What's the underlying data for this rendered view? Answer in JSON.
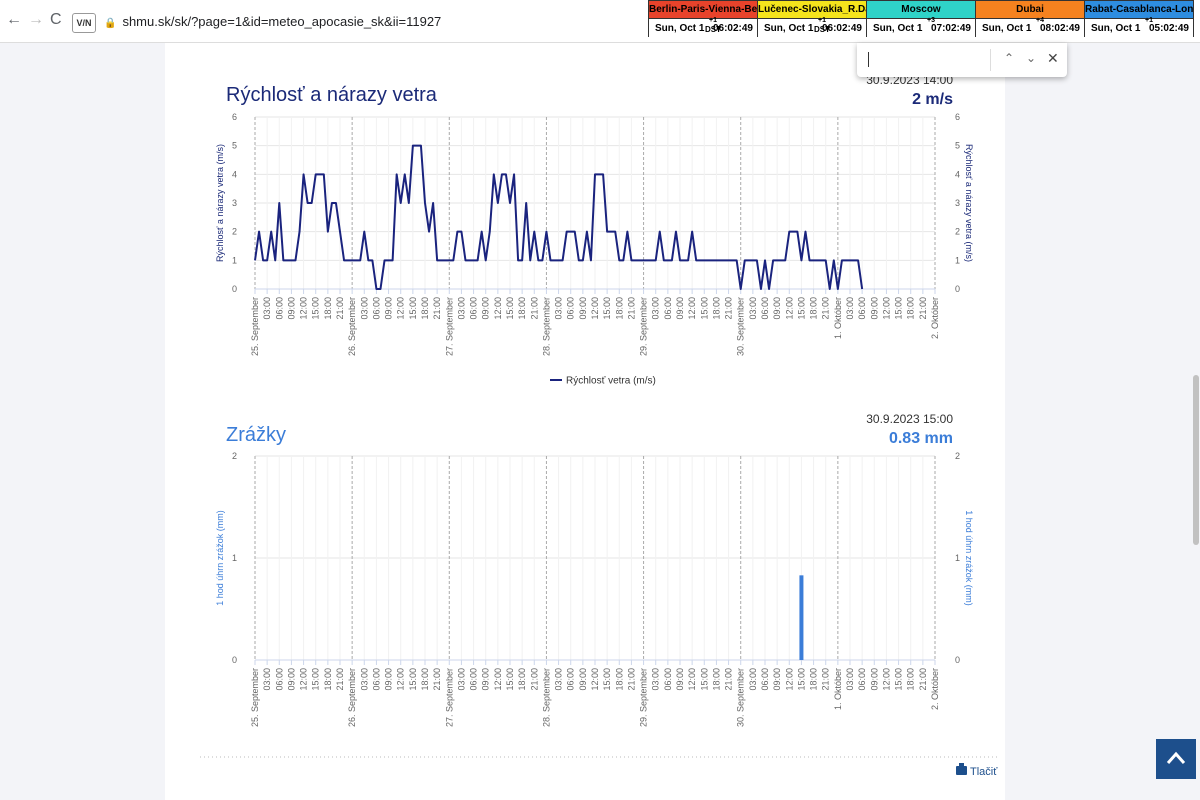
{
  "browser": {
    "url": "shmu.sk/sk/?page=1&id=meteo_apocasie_sk&ii=11927"
  },
  "clocks": [
    {
      "name": "Berlin-Paris-Vienna-Belgrade",
      "color": "#e8432b",
      "date": "Sun, Oct 1",
      "offset": "+1",
      "dst": "DST",
      "time": "06:02:49"
    },
    {
      "name": "Lučenec-Slovakia_R.Dávid",
      "color": "#f5e41c",
      "date": "Sun, Oct 1",
      "offset": "+1",
      "dst": "DST",
      "time": "06:02:49"
    },
    {
      "name": "Moscow",
      "color": "#2fd3c8",
      "date": "Sun, Oct 1",
      "offset": "+3",
      "time": "07:02:49"
    },
    {
      "name": "Dubai",
      "color": "#f5821f",
      "date": "Sun, Oct 1",
      "offset": "+4",
      "time": "08:02:49"
    },
    {
      "name": "Rabat-Casablanca-London",
      "color": "#2e8de0",
      "date": "Sun, Oct 1",
      "offset": "+1",
      "time": "05:02:49"
    }
  ],
  "print_label": "Tlačiť",
  "chart_data": [
    {
      "type": "line",
      "title": "Rýchlosť a nárazy vetra",
      "ylabel": "Rýchlosť a nárazy vetra (m/s)",
      "current": {
        "time": "30.9.2023 14:00",
        "reading": "2 m/s"
      },
      "xlim": [
        0,
        168
      ],
      "ylim": [
        0,
        6
      ],
      "yticks": [
        0,
        1,
        2,
        3,
        4,
        5,
        6
      ],
      "grid": true,
      "legend": "bottom",
      "xticks": [
        {
          "value": 0,
          "label": "25. September"
        },
        {
          "value": 3,
          "label": "03:00"
        },
        {
          "value": 6,
          "label": "06:00"
        },
        {
          "value": 9,
          "label": "09:00"
        },
        {
          "value": 12,
          "label": "12:00"
        },
        {
          "value": 15,
          "label": "15:00"
        },
        {
          "value": 18,
          "label": "18:00"
        },
        {
          "value": 21,
          "label": "21:00"
        },
        {
          "value": 24,
          "label": "26. September"
        },
        {
          "value": 27,
          "label": "03:00"
        },
        {
          "value": 30,
          "label": "06:00"
        },
        {
          "value": 33,
          "label": "09:00"
        },
        {
          "value": 36,
          "label": "12:00"
        },
        {
          "value": 39,
          "label": "15:00"
        },
        {
          "value": 42,
          "label": "18:00"
        },
        {
          "value": 45,
          "label": "21:00"
        },
        {
          "value": 48,
          "label": "27. September"
        },
        {
          "value": 51,
          "label": "03:00"
        },
        {
          "value": 54,
          "label": "06:00"
        },
        {
          "value": 57,
          "label": "09:00"
        },
        {
          "value": 60,
          "label": "12:00"
        },
        {
          "value": 63,
          "label": "15:00"
        },
        {
          "value": 66,
          "label": "18:00"
        },
        {
          "value": 69,
          "label": "21:00"
        },
        {
          "value": 72,
          "label": "28. September"
        },
        {
          "value": 75,
          "label": "03:00"
        },
        {
          "value": 78,
          "label": "06:00"
        },
        {
          "value": 81,
          "label": "09:00"
        },
        {
          "value": 84,
          "label": "12:00"
        },
        {
          "value": 87,
          "label": "15:00"
        },
        {
          "value": 90,
          "label": "18:00"
        },
        {
          "value": 93,
          "label": "21:00"
        },
        {
          "value": 96,
          "label": "29. September"
        },
        {
          "value": 99,
          "label": "03:00"
        },
        {
          "value": 102,
          "label": "06:00"
        },
        {
          "value": 105,
          "label": "09:00"
        },
        {
          "value": 108,
          "label": "12:00"
        },
        {
          "value": 111,
          "label": "15:00"
        },
        {
          "value": 114,
          "label": "18:00"
        },
        {
          "value": 117,
          "label": "21:00"
        },
        {
          "value": 120,
          "label": "30. September"
        },
        {
          "value": 123,
          "label": "03:00"
        },
        {
          "value": 126,
          "label": "06:00"
        },
        {
          "value": 129,
          "label": "09:00"
        },
        {
          "value": 132,
          "label": "12:00"
        },
        {
          "value": 135,
          "label": "15:00"
        },
        {
          "value": 138,
          "label": "18:00"
        },
        {
          "value": 141,
          "label": "21:00"
        },
        {
          "value": 144,
          "label": "1. Október"
        },
        {
          "value": 147,
          "label": "03:00"
        },
        {
          "value": 150,
          "label": "06:00"
        },
        {
          "value": 153,
          "label": "09:00"
        },
        {
          "value": 156,
          "label": "12:00"
        },
        {
          "value": 159,
          "label": "15:00"
        },
        {
          "value": 162,
          "label": "18:00"
        },
        {
          "value": 165,
          "label": "21:00"
        },
        {
          "value": 168,
          "label": "2. Október"
        }
      ],
      "x": [
        0,
        1,
        2,
        3,
        4,
        5,
        6,
        7,
        8,
        9,
        10,
        11,
        12,
        13,
        14,
        15,
        16,
        17,
        18,
        19,
        20,
        21,
        22,
        23,
        24,
        25,
        26,
        27,
        28,
        29,
        30,
        31,
        32,
        33,
        34,
        35,
        36,
        37,
        38,
        39,
        40,
        41,
        42,
        43,
        44,
        45,
        46,
        47,
        48,
        49,
        50,
        51,
        52,
        53,
        54,
        55,
        56,
        57,
        58,
        59,
        60,
        61,
        62,
        63,
        64,
        65,
        66,
        67,
        68,
        69,
        70,
        71,
        72,
        73,
        74,
        75,
        76,
        77,
        78,
        79,
        80,
        81,
        82,
        83,
        84,
        85,
        86,
        87,
        88,
        89,
        90,
        91,
        92,
        93,
        94,
        95,
        96,
        97,
        98,
        99,
        100,
        101,
        102,
        103,
        104,
        105,
        106,
        107,
        108,
        109,
        110,
        111,
        112,
        113,
        114,
        115,
        116,
        117,
        118,
        119,
        120,
        121,
        122,
        123,
        124,
        125,
        126,
        127,
        128,
        129,
        130,
        131,
        132,
        133,
        134,
        135,
        136,
        137,
        138,
        139,
        140,
        141,
        142,
        143,
        144,
        145,
        146,
        147,
        148,
        149,
        150
      ],
      "series": [
        {
          "name": "Rýchlosť vetra (m/s)",
          "color": "#1a237e",
          "values": [
            1,
            2,
            1,
            1,
            2,
            1,
            3,
            1,
            1,
            1,
            1,
            2,
            4,
            3,
            3,
            4,
            4,
            4,
            2,
            3,
            3,
            2,
            1,
            1,
            1,
            1,
            1,
            2,
            1,
            1,
            0,
            0,
            1,
            1,
            1,
            4,
            3,
            4,
            3,
            5,
            5,
            5,
            3,
            2,
            3,
            1,
            1,
            1,
            1,
            1,
            2,
            2,
            1,
            1,
            1,
            1,
            2,
            1,
            2,
            4,
            3,
            4,
            4,
            3,
            4,
            1,
            1,
            3,
            1,
            2,
            1,
            1,
            2,
            1,
            1,
            1,
            1,
            2,
            2,
            2,
            1,
            1,
            2,
            1,
            4,
            4,
            4,
            2,
            2,
            2,
            1,
            1,
            2,
            1,
            1,
            1,
            1,
            1,
            1,
            1,
            2,
            1,
            1,
            1,
            2,
            1,
            1,
            1,
            2,
            1,
            1,
            1,
            1,
            1,
            1,
            1,
            1,
            1,
            1,
            1,
            0,
            1,
            1,
            1,
            1,
            0,
            1,
            0,
            1,
            1,
            1,
            1,
            2,
            2,
            2,
            1,
            2,
            1,
            1,
            1,
            1,
            1,
            0,
            1,
            0,
            1,
            1,
            1,
            1,
            1,
            0
          ]
        }
      ]
    },
    {
      "type": "bar",
      "title": "Zrážky",
      "ylabel": "1 hod úhrn zrážok (mm)",
      "current": {
        "time": "30.9.2023 15:00",
        "reading": "0.83 mm"
      },
      "xlim": [
        0,
        168
      ],
      "ylim": [
        0,
        2
      ],
      "yticks": [
        0,
        1,
        2
      ],
      "grid": true,
      "color": "#3b7dd8",
      "xticks": [
        {
          "value": 0,
          "label": "25. September"
        },
        {
          "value": 3,
          "label": "03:00"
        },
        {
          "value": 6,
          "label": "06:00"
        },
        {
          "value": 9,
          "label": "09:00"
        },
        {
          "value": 12,
          "label": "12:00"
        },
        {
          "value": 15,
          "label": "15:00"
        },
        {
          "value": 18,
          "label": "18:00"
        },
        {
          "value": 21,
          "label": "21:00"
        },
        {
          "value": 24,
          "label": "26. September"
        },
        {
          "value": 27,
          "label": "03:00"
        },
        {
          "value": 30,
          "label": "06:00"
        },
        {
          "value": 33,
          "label": "09:00"
        },
        {
          "value": 36,
          "label": "12:00"
        },
        {
          "value": 39,
          "label": "15:00"
        },
        {
          "value": 42,
          "label": "18:00"
        },
        {
          "value": 45,
          "label": "21:00"
        },
        {
          "value": 48,
          "label": "27. September"
        },
        {
          "value": 51,
          "label": "03:00"
        },
        {
          "value": 54,
          "label": "06:00"
        },
        {
          "value": 57,
          "label": "09:00"
        },
        {
          "value": 60,
          "label": "12:00"
        },
        {
          "value": 63,
          "label": "15:00"
        },
        {
          "value": 66,
          "label": "18:00"
        },
        {
          "value": 69,
          "label": "21:00"
        },
        {
          "value": 72,
          "label": "28. September"
        },
        {
          "value": 75,
          "label": "03:00"
        },
        {
          "value": 78,
          "label": "06:00"
        },
        {
          "value": 81,
          "label": "09:00"
        },
        {
          "value": 84,
          "label": "12:00"
        },
        {
          "value": 87,
          "label": "15:00"
        },
        {
          "value": 90,
          "label": "18:00"
        },
        {
          "value": 93,
          "label": "21:00"
        },
        {
          "value": 96,
          "label": "29. September"
        },
        {
          "value": 99,
          "label": "03:00"
        },
        {
          "value": 102,
          "label": "06:00"
        },
        {
          "value": 105,
          "label": "09:00"
        },
        {
          "value": 108,
          "label": "12:00"
        },
        {
          "value": 111,
          "label": "15:00"
        },
        {
          "value": 114,
          "label": "18:00"
        },
        {
          "value": 117,
          "label": "21:00"
        },
        {
          "value": 120,
          "label": "30. September"
        },
        {
          "value": 123,
          "label": "03:00"
        },
        {
          "value": 126,
          "label": "06:00"
        },
        {
          "value": 129,
          "label": "09:00"
        },
        {
          "value": 132,
          "label": "12:00"
        },
        {
          "value": 135,
          "label": "15:00"
        },
        {
          "value": 138,
          "label": "18:00"
        },
        {
          "value": 141,
          "label": "21:00"
        },
        {
          "value": 144,
          "label": "1. Október"
        },
        {
          "value": 147,
          "label": "03:00"
        },
        {
          "value": 150,
          "label": "06:00"
        },
        {
          "value": 153,
          "label": "09:00"
        },
        {
          "value": 156,
          "label": "12:00"
        },
        {
          "value": 159,
          "label": "15:00"
        },
        {
          "value": 162,
          "label": "18:00"
        },
        {
          "value": 165,
          "label": "21:00"
        },
        {
          "value": 168,
          "label": "2. Október"
        }
      ],
      "x": [
        135
      ],
      "values": [
        0.83
      ]
    }
  ]
}
